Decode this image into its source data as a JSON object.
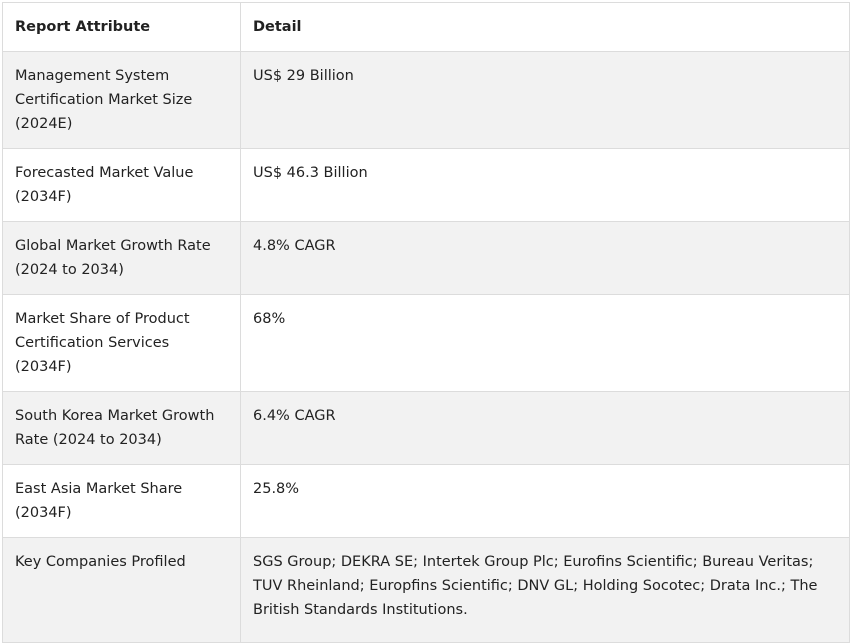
{
  "table": {
    "headers": [
      "Report Attribute",
      "Detail"
    ],
    "rows": [
      {
        "attribute": "Management System Certification Market Size (2024E)",
        "detail": "US$ 29 Billion"
      },
      {
        "attribute": "Forecasted Market Value (2034F)",
        "detail": "US$ 46.3 Billion"
      },
      {
        "attribute": "Global Market Growth Rate (2024 to 2034)",
        "detail": "4.8% CAGR"
      },
      {
        "attribute": "Market Share of Product Certification Services (2034F)",
        "detail": "68%"
      },
      {
        "attribute": "South Korea Market Growth Rate (2024 to 2034)",
        "detail": "6.4% CAGR"
      },
      {
        "attribute": "East Asia Market Share (2034F)",
        "detail": "25.8%"
      },
      {
        "attribute": "Key Companies Profiled",
        "detail": "SGS Group; DEKRA SE; Intertek Group Plc; Eurofins Scientific; Bureau Veritas; TUV Rheinland; Europfins Scientific; DNV GL; Holding Socotec; Drata Inc.; The British Standards Institutions."
      }
    ]
  }
}
